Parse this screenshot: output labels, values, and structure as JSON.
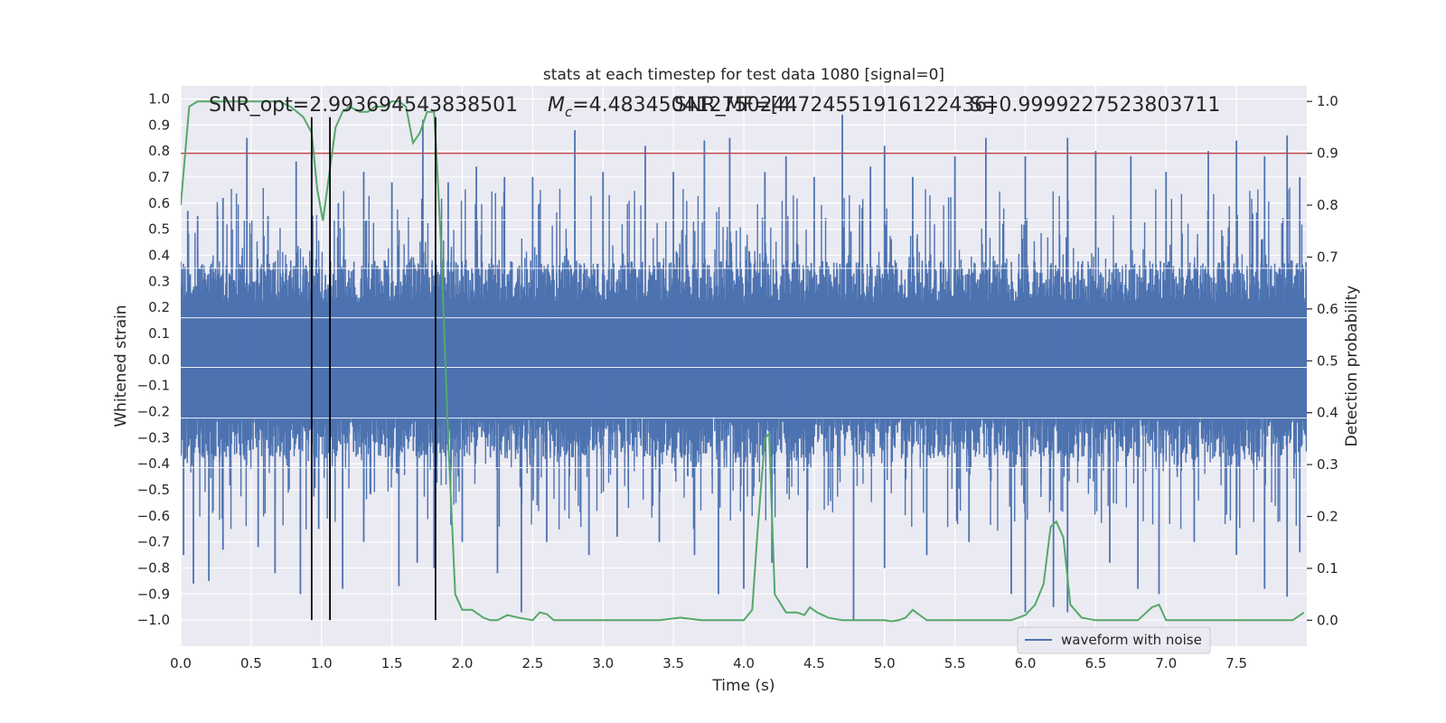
{
  "chart_data": {
    "type": "line",
    "title": "stats at each timestep for test data 1080 [signal=0]",
    "xlabel": "Time (s)",
    "ylabel": "Whitened strain",
    "ylabel_right": "Detection probability",
    "xlim": [
      0,
      8
    ],
    "ylim": [
      -1.1,
      1.05
    ],
    "ylim_right": [
      -0.05,
      1.03
    ],
    "x_ticks": [
      0.0,
      0.5,
      1.0,
      1.5,
      2.0,
      2.5,
      3.0,
      3.5,
      4.0,
      4.5,
      5.0,
      5.5,
      6.0,
      6.5,
      7.0,
      7.5
    ],
    "y_ticks": [
      -1.0,
      -0.9,
      -0.8,
      -0.7,
      -0.6,
      -0.5,
      -0.4,
      -0.3,
      -0.2,
      -0.1,
      0.0,
      0.1,
      0.2,
      0.3,
      0.4,
      0.5,
      0.6,
      0.7,
      0.8,
      0.9,
      1.0
    ],
    "y_ticks_right": [
      0.0,
      0.1,
      0.2,
      0.3,
      0.4,
      0.5,
      0.6,
      0.7,
      0.8,
      0.9,
      1.0
    ],
    "grid": true,
    "legend_position": "lower-right",
    "annotations": {
      "snr_opt": "SNR_opt=2.993694543838501",
      "mc_prefix": "M",
      "mc_sub": "c",
      "mc_value": "=4.483450412750244",
      "snr_mf": "SNR_MF=[4.724551916122436]",
      "s_value": "S=0.9999227523803711"
    },
    "series": [
      {
        "name": "waveform with noise",
        "color": "#4c72b0",
        "note": "dense whitened noise strain; values mostly within ±0.35 with spikes up to ±0.95",
        "spikes_up": [
          [
            0.05,
            0.57
          ],
          [
            0.12,
            0.55
          ],
          [
            0.3,
            0.62
          ],
          [
            0.47,
            0.85
          ],
          [
            0.62,
            0.55
          ],
          [
            0.82,
            0.76
          ],
          [
            0.93,
            0.8
          ],
          [
            1.12,
            0.6
          ],
          [
            1.3,
            0.72
          ],
          [
            1.5,
            0.68
          ],
          [
            1.72,
            0.92
          ],
          [
            1.9,
            0.68
          ],
          [
            2.1,
            0.74
          ],
          [
            2.3,
            0.7
          ],
          [
            2.5,
            0.7
          ],
          [
            2.8,
            0.88
          ],
          [
            3.0,
            0.72
          ],
          [
            3.3,
            0.82
          ],
          [
            3.5,
            0.72
          ],
          [
            3.72,
            0.84
          ],
          [
            3.9,
            0.85
          ],
          [
            4.15,
            0.72
          ],
          [
            4.3,
            0.78
          ],
          [
            4.5,
            0.7
          ],
          [
            4.7,
            0.94
          ],
          [
            4.9,
            0.74
          ],
          [
            5.0,
            0.82
          ],
          [
            5.2,
            0.7
          ],
          [
            5.5,
            0.78
          ],
          [
            5.72,
            0.85
          ],
          [
            6.0,
            0.78
          ],
          [
            6.3,
            0.85
          ],
          [
            6.5,
            0.8
          ],
          [
            6.75,
            0.78
          ],
          [
            7.0,
            0.72
          ],
          [
            7.3,
            0.8
          ],
          [
            7.5,
            0.84
          ],
          [
            7.7,
            0.78
          ],
          [
            7.86,
            0.86
          ],
          [
            7.95,
            0.7
          ]
        ],
        "spikes_down": [
          [
            0.02,
            -0.75
          ],
          [
            0.09,
            -0.86
          ],
          [
            0.2,
            -0.85
          ],
          [
            0.3,
            -0.73
          ],
          [
            0.55,
            -0.72
          ],
          [
            0.67,
            -0.82
          ],
          [
            0.85,
            -0.9
          ],
          [
            0.98,
            -0.65
          ],
          [
            1.15,
            -0.88
          ],
          [
            1.3,
            -0.7
          ],
          [
            1.55,
            -0.87
          ],
          [
            1.68,
            -0.78
          ],
          [
            1.8,
            -0.8
          ],
          [
            2.0,
            -0.7
          ],
          [
            2.25,
            -0.82
          ],
          [
            2.42,
            -0.97
          ],
          [
            2.6,
            -0.7
          ],
          [
            2.9,
            -0.75
          ],
          [
            3.1,
            -0.68
          ],
          [
            3.4,
            -0.7
          ],
          [
            3.65,
            -0.75
          ],
          [
            3.82,
            -0.9
          ],
          [
            4.0,
            -0.88
          ],
          [
            4.2,
            -0.78
          ],
          [
            4.45,
            -0.8
          ],
          [
            4.78,
            -1.0
          ],
          [
            5.0,
            -0.8
          ],
          [
            5.3,
            -0.75
          ],
          [
            5.6,
            -0.7
          ],
          [
            5.9,
            -0.9
          ],
          [
            6.0,
            -0.97
          ],
          [
            6.2,
            -0.95
          ],
          [
            6.3,
            -0.97
          ],
          [
            6.6,
            -0.78
          ],
          [
            6.8,
            -0.88
          ],
          [
            6.95,
            -0.9
          ],
          [
            7.2,
            -0.7
          ],
          [
            7.5,
            -0.75
          ],
          [
            7.7,
            -0.88
          ],
          [
            7.86,
            -0.91
          ],
          [
            7.95,
            -0.74
          ]
        ]
      },
      {
        "name": "",
        "color": "#55a868",
        "axis": "right",
        "x": [
          0.0,
          0.06,
          0.12,
          0.3,
          0.5,
          0.7,
          0.78,
          0.87,
          0.93,
          0.97,
          1.01,
          1.05,
          1.1,
          1.15,
          1.2,
          1.27,
          1.33,
          1.38,
          1.45,
          1.5,
          1.55,
          1.6,
          1.65,
          1.7,
          1.75,
          1.8,
          1.82,
          1.85,
          1.9,
          1.95,
          2.0,
          2.07,
          2.15,
          2.2,
          2.25,
          2.32,
          2.4,
          2.5,
          2.55,
          2.6,
          2.65,
          2.8,
          3.0,
          3.2,
          3.4,
          3.55,
          3.7,
          3.9,
          4.0,
          4.06,
          4.1,
          4.15,
          4.18,
          4.22,
          4.3,
          4.38,
          4.43,
          4.47,
          4.52,
          4.6,
          4.7,
          4.8,
          4.9,
          5.0,
          5.05,
          5.1,
          5.15,
          5.2,
          5.3,
          5.4,
          5.6,
          5.7,
          5.8,
          5.9,
          6.0,
          6.07,
          6.13,
          6.18,
          6.22,
          6.27,
          6.32,
          6.4,
          6.5,
          6.6,
          6.8,
          6.9,
          6.95,
          7.0,
          7.05,
          7.15,
          7.3,
          7.5,
          7.7,
          7.9,
          7.98
        ],
        "y": [
          0.8,
          0.99,
          1.0,
          1.0,
          1.0,
          1.0,
          0.99,
          0.97,
          0.94,
          0.83,
          0.77,
          0.85,
          0.95,
          0.98,
          0.99,
          0.98,
          0.98,
          0.99,
          0.99,
          1.0,
          1.0,
          0.99,
          0.92,
          0.94,
          0.98,
          0.98,
          0.88,
          0.72,
          0.35,
          0.05,
          0.02,
          0.02,
          0.005,
          0.0,
          0.0,
          0.01,
          0.005,
          0.0,
          0.015,
          0.012,
          0.0,
          0.0,
          0.0,
          0.0,
          0.0,
          0.005,
          0.0,
          0.0,
          0.0,
          0.02,
          0.18,
          0.35,
          0.36,
          0.05,
          0.015,
          0.015,
          0.01,
          0.025,
          0.015,
          0.005,
          0.0,
          0.0,
          0.0,
          0.0,
          -0.002,
          0.0,
          0.005,
          0.02,
          0.0,
          0.0,
          0.0,
          0.0,
          0.0,
          0.0,
          0.01,
          0.03,
          0.07,
          0.18,
          0.19,
          0.16,
          0.03,
          0.005,
          0.0,
          0.0,
          0.0,
          0.025,
          0.03,
          0.0,
          0.0,
          0.0,
          0.0,
          0.0,
          0.0,
          0.0,
          0.015
        ]
      }
    ],
    "hline_right": {
      "y": 0.9,
      "color": "#c44e52"
    },
    "vlines": [
      {
        "x": 0.93,
        "ymin": -1.0,
        "ymax": 0.93,
        "color": "#000000"
      },
      {
        "x": 1.06,
        "ymin": -1.0,
        "ymax": 0.93,
        "color": "#000000"
      },
      {
        "x": 1.81,
        "ymin": -1.0,
        "ymax": 0.93,
        "color": "#000000"
      }
    ]
  }
}
